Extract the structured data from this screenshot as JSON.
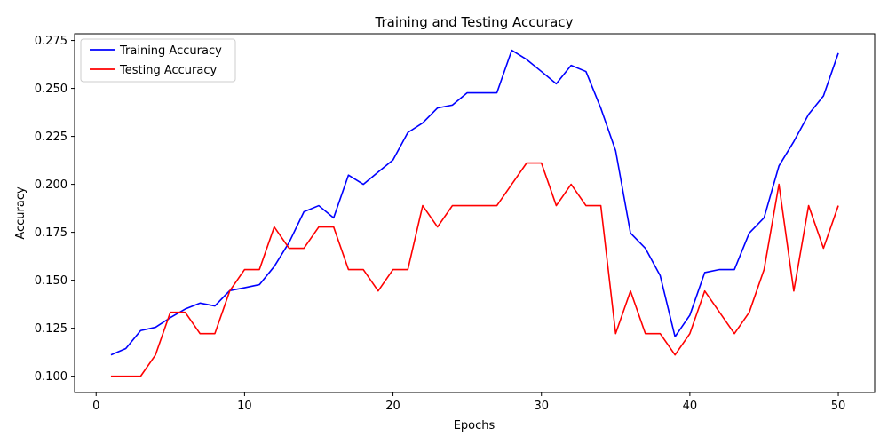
{
  "chart_data": {
    "type": "line",
    "title": "Training and Testing Accuracy",
    "xlabel": "Epochs",
    "ylabel": "Accuracy",
    "xlim": [
      -1.45,
      52.45
    ],
    "ylim": [
      0.0915,
      0.2785
    ],
    "xticks": [
      0,
      10,
      20,
      30,
      40,
      50
    ],
    "xtick_labels": [
      "0",
      "10",
      "20",
      "30",
      "40",
      "50"
    ],
    "yticks": [
      0.1,
      0.125,
      0.15,
      0.175,
      0.2,
      0.225,
      0.25,
      0.275
    ],
    "ytick_labels": [
      "0.100",
      "0.125",
      "0.150",
      "0.175",
      "0.200",
      "0.225",
      "0.250",
      "0.275"
    ],
    "grid": false,
    "legend_position": "top-left",
    "x": [
      1,
      2,
      3,
      4,
      5,
      6,
      7,
      8,
      9,
      10,
      11,
      12,
      13,
      14,
      15,
      16,
      17,
      18,
      19,
      20,
      21,
      22,
      23,
      24,
      25,
      26,
      27,
      28,
      29,
      30,
      31,
      32,
      33,
      34,
      35,
      36,
      37,
      38,
      39,
      40,
      41,
      42,
      43,
      44,
      45,
      46,
      47,
      48,
      49,
      50
    ],
    "series": [
      {
        "name": "Training Accuracy",
        "color": "#0000ff",
        "values": [
          0.1111,
          0.1144,
          0.1238,
          0.1255,
          0.1305,
          0.135,
          0.1381,
          0.1366,
          0.1446,
          0.1461,
          0.1477,
          0.1572,
          0.1697,
          0.1857,
          0.1889,
          0.1825,
          0.2048,
          0.2,
          0.2064,
          0.2127,
          0.227,
          0.232,
          0.2398,
          0.2413,
          0.2477,
          0.2477,
          0.2477,
          0.2699,
          0.2651,
          0.2588,
          0.2524,
          0.262,
          0.2588,
          0.2397,
          0.2175,
          0.1746,
          0.1667,
          0.1524,
          0.1206,
          0.1318,
          0.154,
          0.1556,
          0.1556,
          0.1746,
          0.1826,
          0.2096,
          0.2223,
          0.2365,
          0.2461,
          0.2684
        ]
      },
      {
        "name": "Testing Accuracy",
        "color": "#ff0000",
        "values": [
          0.1,
          0.1,
          0.1,
          0.1111,
          0.1333,
          0.1333,
          0.1222,
          0.1222,
          0.1444,
          0.1556,
          0.1556,
          0.1778,
          0.1667,
          0.1667,
          0.1778,
          0.1778,
          0.1556,
          0.1556,
          0.1444,
          0.1556,
          0.1556,
          0.1889,
          0.1778,
          0.1889,
          0.1889,
          0.1889,
          0.1889,
          0.2,
          0.2111,
          0.2111,
          0.1889,
          0.2,
          0.1889,
          0.1889,
          0.1222,
          0.1444,
          0.1222,
          0.1222,
          0.1111,
          0.1222,
          0.1444,
          0.1333,
          0.1222,
          0.1333,
          0.1556,
          0.2,
          0.1444,
          0.1889,
          0.1667,
          0.1889
        ]
      }
    ]
  }
}
